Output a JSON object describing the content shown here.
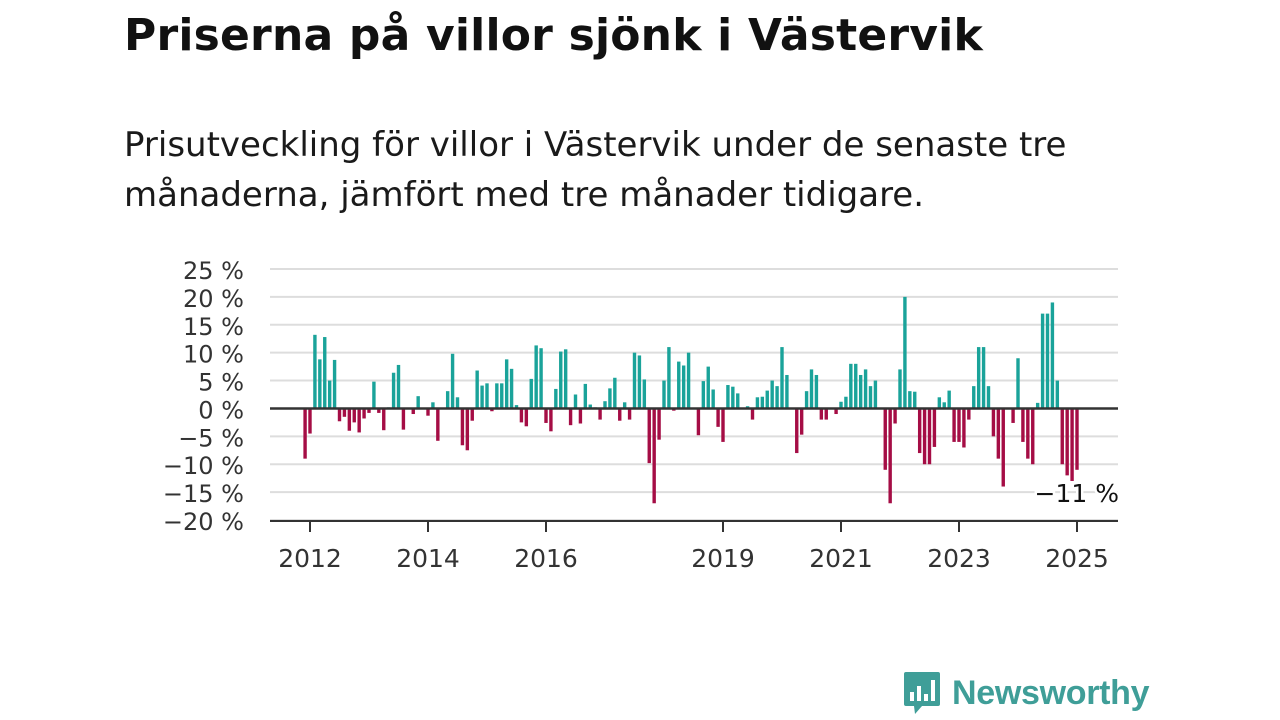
{
  "title": "Priserna på villor sjönk i Västervik",
  "subtitle": "Prisutveckling för villor i Västervik under de senaste tre månaderna, jämfört med tre månader tidigare.",
  "brand": {
    "name": "Newsworthy",
    "icon": "newsworthy-logo-icon",
    "color": "#3f9e98"
  },
  "chart_data": {
    "type": "bar",
    "title": "Priserna på villor sjönk i Västervik",
    "xlabel": "",
    "ylabel": "",
    "unit": "%",
    "ylim": [
      -20,
      25
    ],
    "yticks": [
      25,
      20,
      15,
      10,
      5,
      0,
      -5,
      -10,
      -15,
      -20
    ],
    "ytick_labels": [
      "25 %",
      "20 %",
      "15 %",
      "10 %",
      "5 %",
      "0 %",
      "−5 %",
      "−10 %",
      "−15 %",
      "−20 %"
    ],
    "xticks": [
      {
        "label": "2012",
        "year": 2012
      },
      {
        "label": "2014",
        "year": 2014
      },
      {
        "label": "2016",
        "year": 2016
      },
      {
        "label": "2019",
        "year": 2019
      },
      {
        "label": "2021",
        "year": 2021
      },
      {
        "label": "2023",
        "year": 2023
      },
      {
        "label": "2025",
        "year": 2025
      }
    ],
    "start": "2011-12",
    "end": "2025-02",
    "grid": true,
    "colors": {
      "positive": "#1aa39a",
      "negative": "#a50d45",
      "grid": "#dddddd",
      "axis": "#333333"
    },
    "annotation": {
      "label": "−11 %",
      "value": -11,
      "date": "2025-01"
    },
    "values": [
      -9,
      -4.5,
      13.2,
      8.8,
      12.8,
      5,
      8.7,
      -2.3,
      -1.5,
      -4,
      -2.5,
      -4.3,
      -1.8,
      -0.8,
      4.8,
      -0.8,
      -3.9,
      0.2,
      6.4,
      7.8,
      -3.8,
      0,
      -1,
      2.2,
      0,
      -1.3,
      1.1,
      -5.8,
      0,
      3.1,
      9.8,
      2,
      -6.6,
      -7.5,
      -2.2,
      6.8,
      4.1,
      4.5,
      -0.5,
      4.5,
      4.5,
      8.8,
      7.1,
      0.6,
      -2.5,
      -3.2,
      5.3,
      11.3,
      10.8,
      -2.6,
      -4.1,
      3.5,
      10.2,
      10.6,
      -3,
      2.5,
      -2.7,
      4.4,
      0.7,
      0.2,
      -2,
      1.3,
      3.6,
      5.5,
      -2.2,
      1.1,
      -2,
      10,
      9.5,
      5.2,
      -9.8,
      -17,
      -5.6,
      5,
      11,
      -0.4,
      8.4,
      7.7,
      10,
      0,
      -4.8,
      4.9,
      7.5,
      3.4,
      -3.3,
      -6,
      4.2,
      3.9,
      2.7,
      0,
      0.4,
      -2,
      2,
      2.1,
      3.2,
      5,
      4,
      11,
      6,
      0,
      -8,
      -4.7,
      3.1,
      7,
      6,
      -2,
      -2,
      0,
      -1,
      1.2,
      2.1,
      8,
      8,
      6,
      7,
      4,
      5,
      0,
      -11,
      -17,
      -2.7,
      7,
      20,
      3.1,
      3,
      -8,
      -10,
      -10,
      -6.9,
      2,
      1.1,
      3.2,
      -6,
      -6,
      -7,
      -2,
      4,
      11,
      11,
      4,
      -5,
      -9,
      -14,
      0,
      -2.6,
      9,
      -6,
      -9,
      -10,
      1,
      17,
      17,
      19,
      5,
      -10,
      -12,
      -13,
      -11
    ]
  }
}
